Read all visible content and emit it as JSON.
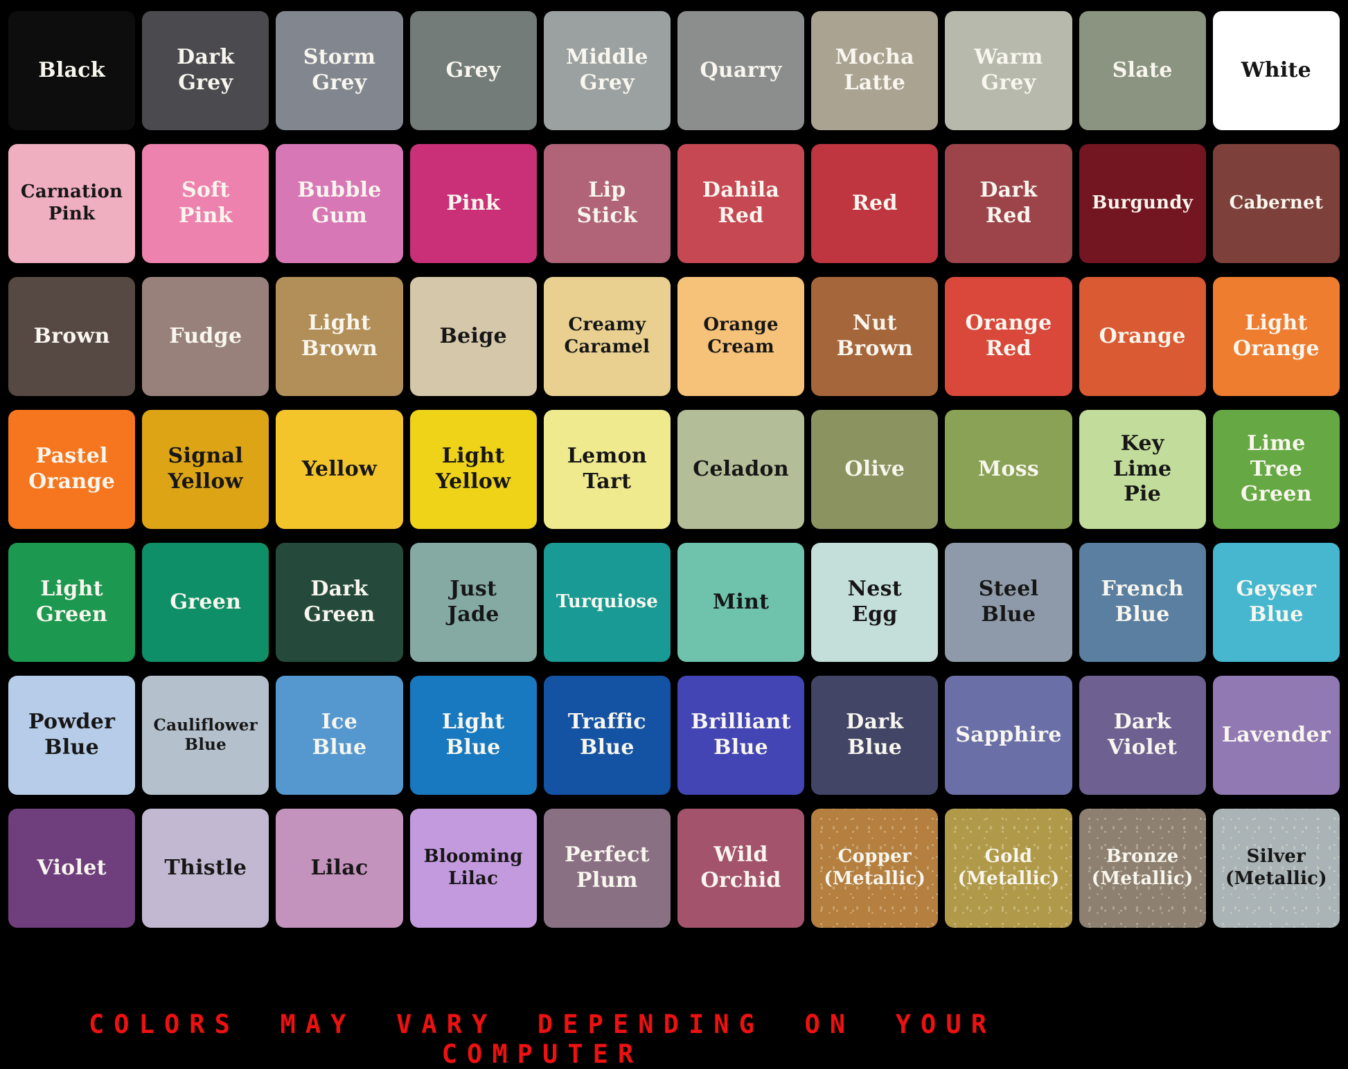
{
  "chart_data": {
    "type": "table",
    "rows": 7,
    "cols": 10,
    "description_visible": false,
    "swatches": [
      {
        "name": "Black",
        "hex": "#0d0d0d",
        "text": "light"
      },
      {
        "name": "Dark Grey",
        "hex": "#4b4b4f",
        "text": "light"
      },
      {
        "name": "Storm Grey",
        "hex": "#82878f",
        "text": "light"
      },
      {
        "name": "Grey",
        "hex": "#737c79",
        "text": "light"
      },
      {
        "name": "Middle Grey",
        "hex": "#9ba1a0",
        "text": "light"
      },
      {
        "name": "Quarry",
        "hex": "#8c8e8d",
        "text": "light"
      },
      {
        "name": "Mocha Latte",
        "hex": "#aba392",
        "text": "light"
      },
      {
        "name": "Warm Grey",
        "hex": "#b6b9ac",
        "text": "light"
      },
      {
        "name": "Slate",
        "hex": "#8b9480",
        "text": "light"
      },
      {
        "name": "White",
        "hex": "#ffffff",
        "text": "dark"
      },
      {
        "name": "Carnation Pink",
        "hex": "#efafc1",
        "text": "dark",
        "size": "sm"
      },
      {
        "name": "Soft Pink",
        "hex": "#ee82ae",
        "text": "light"
      },
      {
        "name": "Bubble Gum",
        "hex": "#d877b6",
        "text": "light"
      },
      {
        "name": "Pink",
        "hex": "#c93077",
        "text": "light"
      },
      {
        "name": "Lip Stick",
        "hex": "#b16478",
        "text": "light"
      },
      {
        "name": "Dahila Red",
        "hex": "#c64853",
        "text": "light"
      },
      {
        "name": "Red",
        "hex": "#bf3540",
        "text": "light"
      },
      {
        "name": "Dark Red",
        "hex": "#9d444b",
        "text": "light"
      },
      {
        "name": "Burgundy",
        "hex": "#731622",
        "text": "light",
        "size": "sm"
      },
      {
        "name": "Cabernet",
        "hex": "#7e403a",
        "text": "light",
        "size": "sm"
      },
      {
        "name": "Brown",
        "hex": "#564842",
        "text": "light"
      },
      {
        "name": "Fudge",
        "hex": "#98817b",
        "text": "light"
      },
      {
        "name": "Light Brown",
        "hex": "#b28f58",
        "text": "light"
      },
      {
        "name": "Beige",
        "hex": "#d5c7a9",
        "text": "dark"
      },
      {
        "name": "Creamy Caramel",
        "hex": "#e9d090",
        "text": "dark",
        "size": "sm"
      },
      {
        "name": "Orange Cream",
        "hex": "#f6c279",
        "text": "dark",
        "size": "sm"
      },
      {
        "name": "Nut Brown",
        "hex": "#a5663c",
        "text": "light"
      },
      {
        "name": "Orange Red",
        "hex": "#d9483b",
        "text": "light"
      },
      {
        "name": "Orange",
        "hex": "#da5a33",
        "text": "light"
      },
      {
        "name": "Light Orange",
        "hex": "#ee7d2f",
        "text": "light"
      },
      {
        "name": "Pastel Orange",
        "hex": "#f5761f",
        "text": "light"
      },
      {
        "name": "Signal Yellow",
        "hex": "#dda416",
        "text": "dark"
      },
      {
        "name": "Yellow",
        "hex": "#f4c52b",
        "text": "dark"
      },
      {
        "name": "Light Yellow",
        "hex": "#eed318",
        "text": "dark"
      },
      {
        "name": "Lemon Tart",
        "hex": "#f0ea8f",
        "text": "dark"
      },
      {
        "name": "Celadon",
        "hex": "#b3bd98",
        "text": "dark"
      },
      {
        "name": "Olive",
        "hex": "#8b9460",
        "text": "light"
      },
      {
        "name": "Moss",
        "hex": "#8aa255",
        "text": "light"
      },
      {
        "name": "Key Lime Pie",
        "hex": "#c2dd9b",
        "text": "dark"
      },
      {
        "name": "Lime Tree Green",
        "hex": "#66a843",
        "text": "light"
      },
      {
        "name": "Light Green",
        "hex": "#1d9850",
        "text": "light"
      },
      {
        "name": "Green",
        "hex": "#0f8f68",
        "text": "light"
      },
      {
        "name": "Dark Green",
        "hex": "#254a3b",
        "text": "light"
      },
      {
        "name": "Just Jade",
        "hex": "#85aaa4",
        "text": "dark"
      },
      {
        "name": "Turquiose",
        "hex": "#199a94",
        "text": "light",
        "size": "sm"
      },
      {
        "name": "Mint",
        "hex": "#6fc3ac",
        "text": "dark"
      },
      {
        "name": "Nest Egg",
        "hex": "#c4ded9",
        "text": "dark"
      },
      {
        "name": "Steel Blue",
        "hex": "#8e9aa9",
        "text": "dark"
      },
      {
        "name": "French Blue",
        "hex": "#5a7fa0",
        "text": "light"
      },
      {
        "name": "Geyser Blue",
        "hex": "#46b7cf",
        "text": "light"
      },
      {
        "name": "Powder Blue",
        "hex": "#b7cce8",
        "text": "dark"
      },
      {
        "name": "Cauliflower Blue",
        "hex": "#b4c0cc",
        "text": "dark",
        "size": "xs"
      },
      {
        "name": "Ice Blue",
        "hex": "#5598cf",
        "text": "light"
      },
      {
        "name": "Light Blue",
        "hex": "#1879c0",
        "text": "light"
      },
      {
        "name": "Traffic Blue",
        "hex": "#1453a3",
        "text": "light"
      },
      {
        "name": "Brilliant Blue",
        "hex": "#4245b3",
        "text": "light"
      },
      {
        "name": "Dark Blue",
        "hex": "#434566",
        "text": "light"
      },
      {
        "name": "Sapphire",
        "hex": "#6b6fa8",
        "text": "light"
      },
      {
        "name": "Dark Violet",
        "hex": "#6e6191",
        "text": "light"
      },
      {
        "name": "Lavender",
        "hex": "#9179b3",
        "text": "light"
      },
      {
        "name": "Violet",
        "hex": "#6f3e7d",
        "text": "light"
      },
      {
        "name": "Thistle",
        "hex": "#c3b8d1",
        "text": "dark"
      },
      {
        "name": "Lilac",
        "hex": "#c392bd",
        "text": "dark"
      },
      {
        "name": "Blooming Lilac",
        "hex": "#c49ade",
        "text": "dark",
        "size": "sm"
      },
      {
        "name": "Perfect Plum",
        "hex": "#8a7083",
        "text": "light"
      },
      {
        "name": "Wild Orchid",
        "hex": "#a4536d",
        "text": "light"
      },
      {
        "name": "Copper (Metallic)",
        "hex": "#b47f3f",
        "text": "light",
        "size": "sm",
        "metallic": true
      },
      {
        "name": "Gold (Metallic)",
        "hex": "#b09a4a",
        "text": "light",
        "size": "sm",
        "metallic": true
      },
      {
        "name": "Bronze (Metallic)",
        "hex": "#8d8070",
        "text": "light",
        "size": "sm",
        "metallic": true
      },
      {
        "name": "Silver (Metallic)",
        "hex": "#aab3b5",
        "text": "dark",
        "size": "sm",
        "metallic": true
      }
    ]
  },
  "footer": {
    "text": "COLORS MAY VARY DEPENDING ON YOUR COMPUTER",
    "color": "#ee1111"
  }
}
